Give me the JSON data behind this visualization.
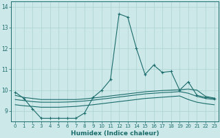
{
  "xlabel": "Humidex (Indice chaleur)",
  "background_color": "#cce8e8",
  "grid_color": "#b0d4d4",
  "line_color": "#1a6b6b",
  "x": [
    0,
    1,
    2,
    3,
    4,
    5,
    6,
    7,
    8,
    9,
    10,
    11,
    12,
    13,
    14,
    15,
    16,
    17,
    18,
    19,
    20,
    21,
    22,
    23
  ],
  "y_main": [
    9.9,
    9.6,
    9.1,
    8.65,
    8.65,
    8.65,
    8.65,
    8.65,
    8.9,
    9.65,
    10.0,
    10.5,
    13.65,
    13.5,
    12.0,
    10.75,
    11.2,
    10.85,
    10.9,
    10.0,
    10.4,
    9.75,
    9.65,
    9.6
  ],
  "y_line1": [
    9.75,
    9.65,
    9.6,
    9.55,
    9.55,
    9.55,
    9.55,
    9.55,
    9.58,
    9.62,
    9.67,
    9.72,
    9.77,
    9.82,
    9.87,
    9.92,
    9.95,
    9.98,
    10.0,
    10.02,
    10.05,
    10.0,
    9.7,
    9.62
  ],
  "y_line2": [
    9.55,
    9.5,
    9.45,
    9.42,
    9.42,
    9.42,
    9.43,
    9.45,
    9.48,
    9.52,
    9.57,
    9.62,
    9.67,
    9.72,
    9.77,
    9.82,
    9.85,
    9.88,
    9.9,
    9.93,
    9.85,
    9.7,
    9.6,
    9.55
  ],
  "y_line3": [
    9.3,
    9.25,
    9.22,
    9.18,
    9.18,
    9.18,
    9.2,
    9.22,
    9.26,
    9.3,
    9.35,
    9.4,
    9.45,
    9.5,
    9.55,
    9.6,
    9.63,
    9.66,
    9.69,
    9.72,
    9.55,
    9.42,
    9.35,
    9.3
  ],
  "ylim": [
    8.5,
    14.25
  ],
  "xlim": [
    -0.5,
    23.5
  ],
  "yticks": [
    9,
    10,
    11,
    12,
    13,
    14
  ],
  "xticks": [
    0,
    1,
    2,
    3,
    4,
    5,
    6,
    7,
    8,
    9,
    10,
    11,
    12,
    13,
    14,
    15,
    16,
    17,
    18,
    19,
    20,
    21,
    22,
    23
  ],
  "xtick_labels": [
    "0",
    "1",
    "2",
    "3",
    "4",
    "5",
    "6",
    "7",
    "8",
    "9",
    "10",
    "11",
    "12",
    "13",
    "14",
    "15",
    "16",
    "17",
    "18",
    "19",
    "20",
    "21",
    "22",
    "23"
  ]
}
